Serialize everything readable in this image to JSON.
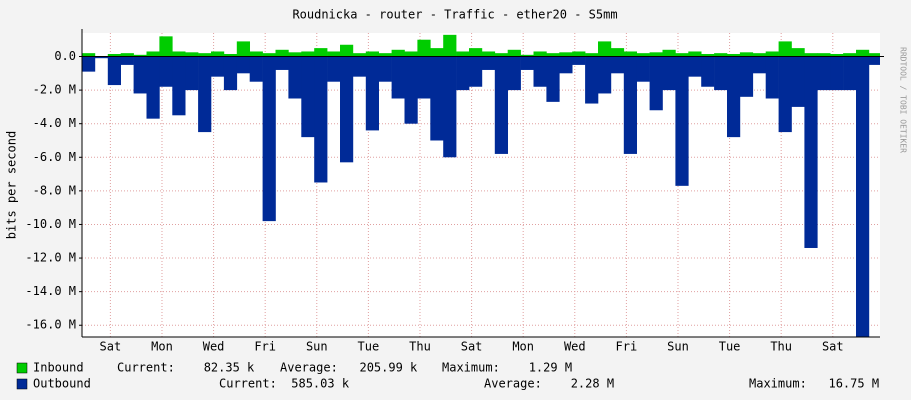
{
  "chart_data": {
    "type": "bar",
    "title": "Roudnicka - router - Traffic - ether20 - S5mm",
    "y_label": "bits per second",
    "watermark": "RRDTOOL / TOBI OETIKER",
    "grid": true,
    "xlim": [
      0,
      30.93
    ],
    "xticks": [
      {
        "value": 1.1,
        "label": "Sat"
      },
      {
        "value": 3.1,
        "label": "Mon"
      },
      {
        "value": 5.1,
        "label": "Wed"
      },
      {
        "value": 7.1,
        "label": "Fri"
      },
      {
        "value": 9.1,
        "label": "Sun"
      },
      {
        "value": 11.1,
        "label": "Tue"
      },
      {
        "value": 13.1,
        "label": "Thu"
      },
      {
        "value": 15.1,
        "label": "Sat"
      },
      {
        "value": 17.1,
        "label": "Mon"
      },
      {
        "value": 19.1,
        "label": "Wed"
      },
      {
        "value": 21.1,
        "label": "Fri"
      },
      {
        "value": 23.1,
        "label": "Sun"
      },
      {
        "value": 25.1,
        "label": "Tue"
      },
      {
        "value": 27.1,
        "label": "Thu"
      },
      {
        "value": 29.1,
        "label": "Sat"
      }
    ],
    "ylim": [
      -16700000,
      1400000
    ],
    "yticks": [
      {
        "value": 0,
        "label": "0.0"
      },
      {
        "value": -2000000,
        "label": "-2.0 M"
      },
      {
        "value": -4000000,
        "label": "-4.0 M"
      },
      {
        "value": -6000000,
        "label": "-6.0 M"
      },
      {
        "value": -8000000,
        "label": "-8.0 M"
      },
      {
        "value": -10000000,
        "label": "-10.0 M"
      },
      {
        "value": -12000000,
        "label": "-12.0 M"
      },
      {
        "value": -14000000,
        "label": "-14.0 M"
      },
      {
        "value": -16000000,
        "label": "-16.0 M"
      }
    ],
    "x": [
      0,
      0.5,
      1,
      1.5,
      2,
      2.5,
      3,
      3.5,
      4,
      4.5,
      5,
      5.5,
      6,
      6.5,
      7,
      7.5,
      8,
      8.5,
      9,
      9.5,
      10,
      10.5,
      11,
      11.5,
      12,
      12.5,
      13,
      13.5,
      14,
      14.5,
      15,
      15.5,
      16,
      16.5,
      17,
      17.5,
      18,
      18.5,
      19,
      19.5,
      20,
      20.5,
      21,
      21.5,
      22,
      22.5,
      23,
      23.5,
      24,
      24.5,
      25,
      25.5,
      26,
      26.5,
      27,
      27.5,
      28,
      28.5,
      29,
      29.5,
      30,
      30.5
    ],
    "series": [
      {
        "name": "Inbound",
        "color": "#00cc00",
        "stats": [
          "Current:    82.35 k",
          "Average:   205.99 k",
          "Maximum:    1.29 M"
        ],
        "values": [
          200000,
          0,
          150000,
          200000,
          100000,
          300000,
          1200000,
          300000,
          250000,
          200000,
          300000,
          150000,
          900000,
          300000,
          200000,
          400000,
          250000,
          300000,
          500000,
          300000,
          700000,
          200000,
          300000,
          200000,
          400000,
          300000,
          1000000,
          500000,
          1290000,
          300000,
          500000,
          300000,
          200000,
          400000,
          100000,
          300000,
          200000,
          250000,
          300000,
          200000,
          900000,
          500000,
          300000,
          200000,
          250000,
          400000,
          200000,
          300000,
          150000,
          200000,
          150000,
          250000,
          200000,
          300000,
          900000,
          500000,
          200000,
          200000,
          150000,
          200000,
          400000,
          200000
        ]
      },
      {
        "name": "Outbound",
        "color": "#002a97",
        "stats": [
          "Current:  585.03 k",
          "Average:    2.28 M",
          "Maximum:   16.75 M"
        ],
        "values": [
          -900000,
          -100000,
          -1700000,
          -500000,
          -2200000,
          -3700000,
          -1800000,
          -3500000,
          -2000000,
          -4500000,
          -1200000,
          -2000000,
          -1000000,
          -1500000,
          -9800000,
          -800000,
          -2500000,
          -4800000,
          -7500000,
          -1500000,
          -6300000,
          -1200000,
          -4400000,
          -1500000,
          -2500000,
          -4000000,
          -2500000,
          -5000000,
          -6000000,
          -2000000,
          -1800000,
          -800000,
          -5800000,
          -2000000,
          -800000,
          -1800000,
          -2700000,
          -1000000,
          -500000,
          -2800000,
          -2200000,
          -1000000,
          -5800000,
          -1500000,
          -3200000,
          -2000000,
          -7700000,
          -1200000,
          -1800000,
          -2000000,
          -4800000,
          -2400000,
          -1000000,
          -2500000,
          -4500000,
          -3000000,
          -11400000,
          -2000000,
          -2000000,
          -2000000,
          -16750000,
          -500000
        ]
      }
    ]
  }
}
